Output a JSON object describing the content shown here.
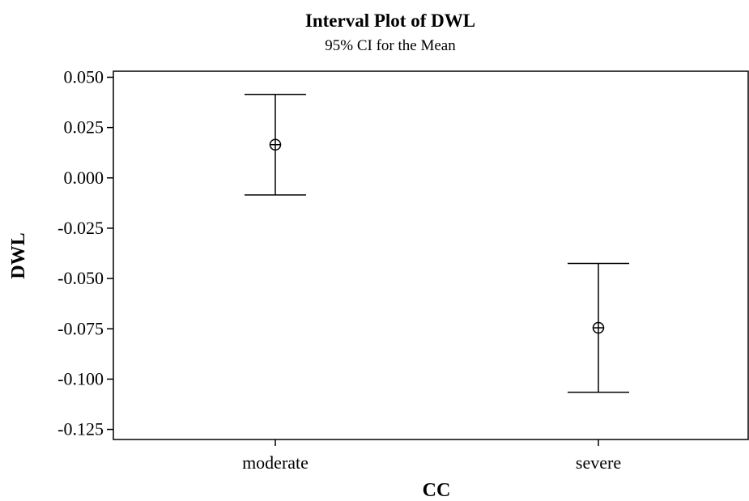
{
  "chart_data": {
    "type": "interval",
    "title": "Interval Plot of DWL",
    "subtitle": "95% CI for the Mean",
    "xlabel": "CC",
    "ylabel": "DWL",
    "categories": [
      "moderate",
      "severe"
    ],
    "means": [
      0.0165,
      -0.0745
    ],
    "ci_lower": [
      -0.0085,
      -0.1065
    ],
    "ci_upper": [
      0.0415,
      -0.0425
    ],
    "ylim": [
      -0.13,
      0.053
    ],
    "yticks": [
      0.05,
      0.025,
      0.0,
      -0.025,
      -0.05,
      -0.075,
      -0.1,
      -0.125
    ],
    "ytick_labels": [
      "0.050",
      "0.025",
      "0.000",
      "-0.025",
      "-0.050",
      "-0.075",
      "-0.100",
      "-0.125"
    ],
    "grid": false,
    "line_color": "#000000"
  }
}
